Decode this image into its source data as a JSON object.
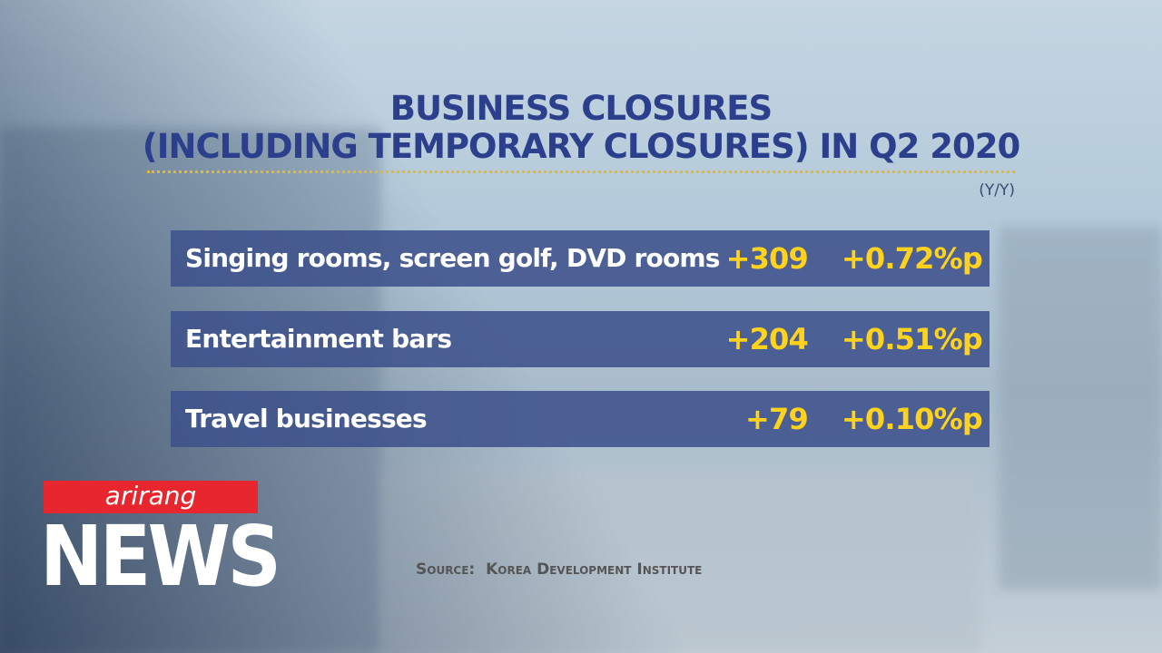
{
  "header": {
    "title_lines": [
      "BUSINESS CLOSURES",
      "(INCLUDING TEMPORARY CLOSURES) IN Q2 2020"
    ],
    "unit": "(Y/Y)"
  },
  "table": {
    "rows": [
      [
        "Singing rooms, screen golf, DVD rooms",
        "+309",
        "+0.72%p"
      ],
      [
        "Entertainment bars",
        "+204",
        "+0.51%p"
      ],
      [
        "Travel businesses",
        "+79",
        "+0.10%p"
      ]
    ]
  },
  "source": {
    "label": "Source:",
    "text": "Korea Development Institute"
  },
  "logo": {
    "brand": "arirang",
    "name": "NEWS"
  }
}
